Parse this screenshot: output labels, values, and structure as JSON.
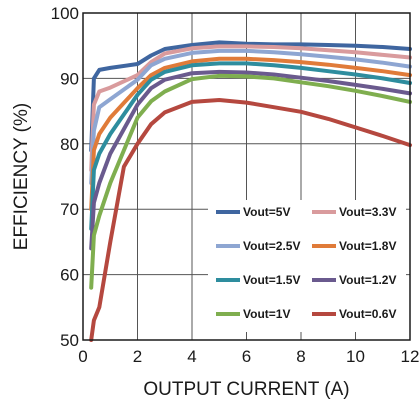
{
  "chart_data": {
    "type": "line",
    "title": "",
    "xlabel": "OUTPUT CURRENT (A)",
    "ylabel": "EFFICIENCY (%)",
    "xlim": [
      0,
      12
    ],
    "ylim": [
      50,
      100
    ],
    "xticks": [
      "0",
      "2",
      "4",
      "6",
      "8",
      "10",
      "12"
    ],
    "yticks": [
      "50",
      "60",
      "70",
      "80",
      "90",
      "100"
    ],
    "grid": true,
    "legend_position": "bottom-right inside plot",
    "series": [
      {
        "name": "Vout=5V",
        "color": "#3f66a0",
        "x": [
          0.3,
          0.4,
          0.6,
          1.0,
          2.0,
          2.5,
          3.0,
          4.0,
          5.0,
          6.0,
          7.0,
          8.0,
          9.0,
          10.0,
          11.0,
          12.0
        ],
        "y": [
          79,
          90,
          91.3,
          91.6,
          92.2,
          93.5,
          94.5,
          95.1,
          95.5,
          95.3,
          95.2,
          95.2,
          95.1,
          95.0,
          94.8,
          94.5
        ]
      },
      {
        "name": "Vout=3.3V",
        "color": "#d99b9d",
        "x": [
          0.3,
          0.4,
          0.6,
          1.0,
          2.0,
          2.5,
          3.0,
          4.0,
          5.0,
          6.0,
          7.0,
          8.0,
          9.0,
          10.0,
          11.0,
          12.0
        ],
        "y": [
          76,
          86,
          88.0,
          88.6,
          90.5,
          92.5,
          93.8,
          94.6,
          94.9,
          94.9,
          94.8,
          94.6,
          94.3,
          94.0,
          93.6,
          93.2
        ]
      },
      {
        "name": "Vout=2.5V",
        "color": "#8ea6d2",
        "x": [
          0.3,
          0.4,
          0.6,
          1.0,
          2.0,
          2.5,
          3.0,
          4.0,
          5.0,
          6.0,
          7.0,
          8.0,
          9.0,
          10.0,
          11.0,
          12.0
        ],
        "y": [
          74,
          82,
          85.6,
          86.8,
          89.8,
          92.0,
          93.0,
          93.9,
          94.2,
          94.2,
          94.0,
          93.7,
          93.3,
          92.9,
          92.4,
          91.8
        ]
      },
      {
        "name": "Vout=1.8V",
        "color": "#e07b39",
        "x": [
          0.3,
          0.4,
          0.6,
          1.0,
          2.0,
          2.5,
          3.0,
          4.0,
          5.0,
          6.0,
          7.0,
          8.0,
          9.0,
          10.0,
          11.0,
          12.0
        ],
        "y": [
          70,
          79,
          81.5,
          84.0,
          88.5,
          90.5,
          91.6,
          92.6,
          93.0,
          93.0,
          92.8,
          92.5,
          92.1,
          91.6,
          91.1,
          90.5
        ]
      },
      {
        "name": "Vout=1.5V",
        "color": "#2e8d9e",
        "x": [
          0.3,
          0.4,
          0.6,
          1.0,
          2.0,
          2.5,
          3.0,
          4.0,
          5.0,
          6.0,
          7.0,
          8.0,
          9.0,
          10.0,
          11.0,
          12.0
        ],
        "y": [
          67,
          76,
          78.5,
          81.5,
          87.5,
          89.8,
          91.0,
          92.0,
          92.3,
          92.3,
          92.0,
          91.6,
          91.1,
          90.6,
          90.0,
          89.3
        ]
      },
      {
        "name": "Vout=1.2V",
        "color": "#6a5a8e",
        "x": [
          0.3,
          0.4,
          0.6,
          1.0,
          2.0,
          2.5,
          3.0,
          4.0,
          5.0,
          6.0,
          7.0,
          8.0,
          9.0,
          10.0,
          11.0,
          12.0
        ],
        "y": [
          64,
          71,
          74.0,
          78.5,
          86.0,
          88.5,
          89.8,
          90.8,
          91.0,
          90.9,
          90.6,
          90.1,
          89.6,
          89.0,
          88.4,
          87.7
        ]
      },
      {
        "name": "Vout=1V",
        "color": "#7fae4f",
        "x": [
          0.3,
          0.4,
          0.6,
          1.0,
          2.0,
          2.5,
          3.0,
          4.0,
          5.0,
          6.0,
          7.0,
          8.0,
          9.0,
          10.0,
          11.0,
          12.0
        ],
        "y": [
          58,
          66,
          69.0,
          74.0,
          84.0,
          86.5,
          88.0,
          89.9,
          90.4,
          90.3,
          90.0,
          89.4,
          88.8,
          88.1,
          87.3,
          86.4
        ]
      },
      {
        "name": "Vout=0.6V",
        "color": "#b5483f",
        "x": [
          0.3,
          0.4,
          0.6,
          1.0,
          1.5,
          2.0,
          2.5,
          3.0,
          4.0,
          5.0,
          6.0,
          7.0,
          8.0,
          9.0,
          10.0,
          11.0,
          12.0
        ],
        "y": [
          50,
          53,
          55.0,
          65.0,
          76.5,
          80.0,
          83.0,
          84.8,
          86.4,
          86.7,
          86.3,
          85.6,
          84.9,
          83.8,
          82.5,
          81.2,
          79.8
        ]
      }
    ]
  }
}
